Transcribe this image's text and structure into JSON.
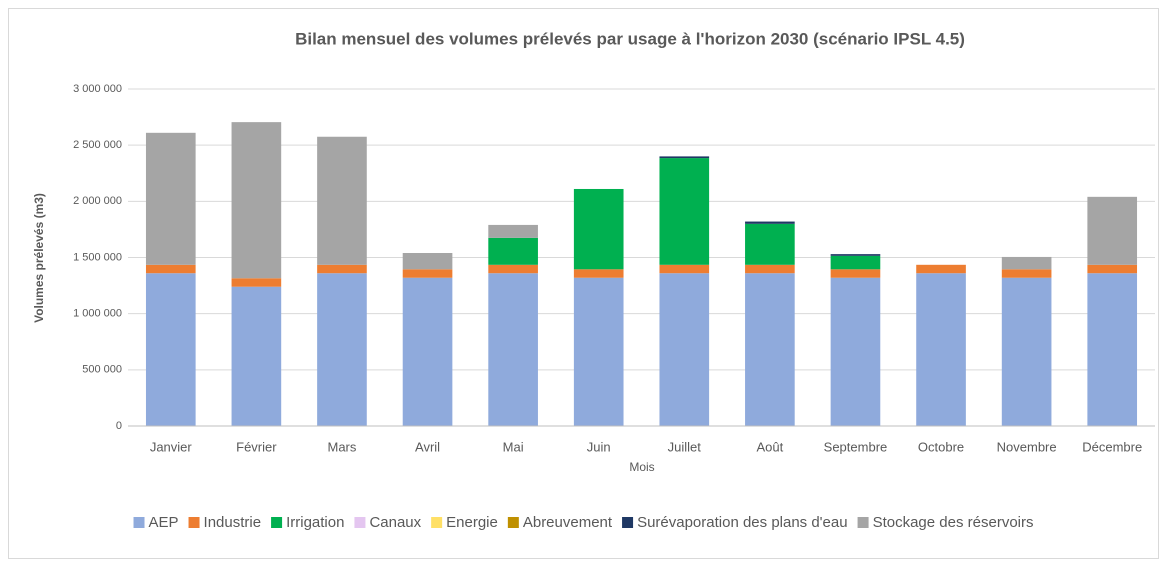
{
  "chart_data": {
    "type": "stacked_bar",
    "title": "Bilan mensuel des volumes prélevés par usage à l'horizon 2030 (scénario IPSL 4.5)",
    "x_label": "Mois",
    "y_label": "Volumes prélevés (m3)",
    "categories": [
      "Janvier",
      "Février",
      "Mars",
      "Avril",
      "Mai",
      "Juin",
      "Juillet",
      "Août",
      "Septembre",
      "Octobre",
      "Novembre",
      "Décembre"
    ],
    "series": [
      {
        "name": "AEP",
        "color": "#8faadc",
        "values": [
          1360000,
          1240000,
          1360000,
          1320000,
          1360000,
          1320000,
          1360000,
          1360000,
          1320000,
          1360000,
          1320000,
          1360000
        ]
      },
      {
        "name": "Industrie",
        "color": "#ed7d31",
        "values": [
          75000,
          75000,
          75000,
          75000,
          75000,
          75000,
          75000,
          75000,
          75000,
          75000,
          75000,
          75000
        ]
      },
      {
        "name": "Irrigation",
        "color": "#00b050",
        "values": [
          0,
          0,
          0,
          0,
          240000,
          715000,
          950000,
          365000,
          120000,
          0,
          0,
          0
        ]
      },
      {
        "name": "Canaux",
        "color": "#e4c6f0",
        "values": [
          0,
          0,
          0,
          0,
          0,
          0,
          0,
          0,
          0,
          0,
          0,
          0
        ]
      },
      {
        "name": "Energie",
        "color": "#ffe066",
        "values": [
          0,
          0,
          0,
          0,
          0,
          0,
          0,
          0,
          0,
          0,
          0,
          0
        ]
      },
      {
        "name": "Abreuvement",
        "color": "#bf9000",
        "values": [
          0,
          0,
          0,
          0,
          0,
          0,
          0,
          0,
          0,
          0,
          0,
          0
        ]
      },
      {
        "name": "Surévaporation des plans d'eau",
        "color": "#1f3864",
        "values": [
          0,
          0,
          0,
          0,
          0,
          0,
          15000,
          20000,
          15000,
          0,
          0,
          0
        ]
      },
      {
        "name": "Stockage des réservoirs",
        "color": "#a5a5a5",
        "values": [
          1175000,
          1390000,
          1140000,
          145000,
          115000,
          0,
          0,
          0,
          0,
          0,
          110000,
          605000
        ]
      }
    ],
    "ylim": [
      0,
      3000000
    ],
    "yticks": [
      0,
      {
        "value": 500000,
        "label": "500 000"
      },
      {
        "value": 1000000,
        "label": "1 000 000"
      },
      {
        "value": 1500000,
        "label": "1 500 000"
      },
      {
        "value": 2000000,
        "label": "2 000 000"
      },
      {
        "value": 2500000,
        "label": "2 500 000"
      },
      {
        "value": 3000000,
        "label": "3 000 000"
      }
    ],
    "grid": true,
    "legend": "bottom"
  }
}
